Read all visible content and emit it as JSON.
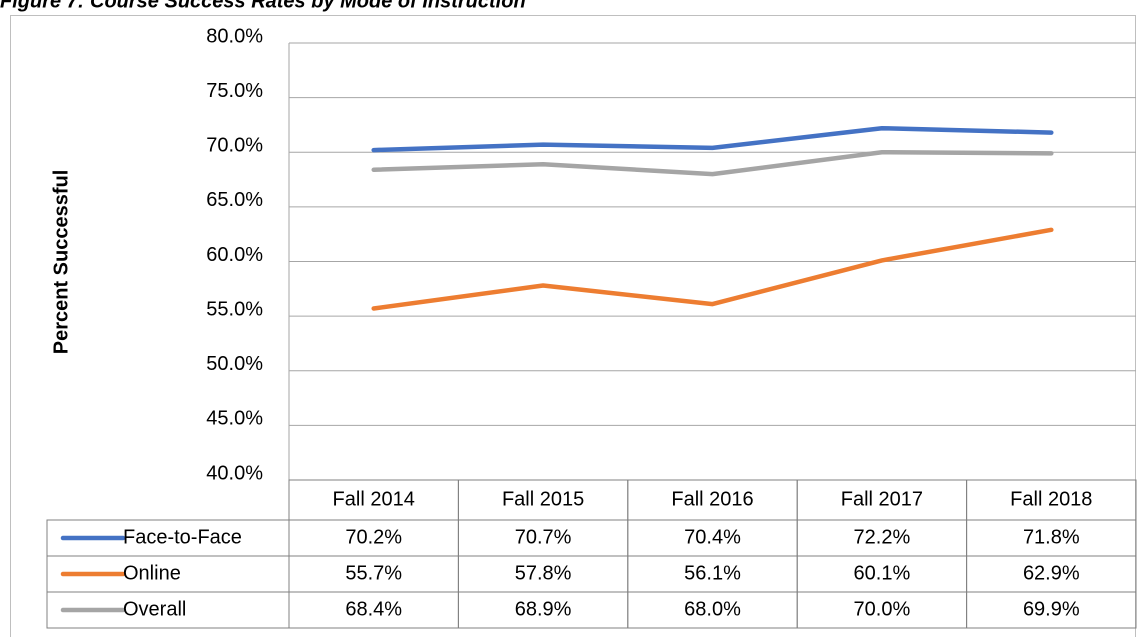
{
  "chart_data": {
    "type": "line",
    "title": "Figure 7: Course Success Rates by Mode of Instruction",
    "y_label": "Percent Successful",
    "categories": [
      "Fall 2014",
      "Fall 2015",
      "Fall 2016",
      "Fall 2017",
      "Fall 2018"
    ],
    "series": [
      {
        "name": "Face-to-Face",
        "color": "#4472c4",
        "values": [
          70.2,
          70.7,
          70.4,
          72.2,
          71.8
        ],
        "value_labels": [
          "70.2%",
          "70.7%",
          "70.4%",
          "72.2%",
          "71.8%"
        ]
      },
      {
        "name": "Online",
        "color": "#ed7d31",
        "values": [
          55.7,
          57.8,
          56.1,
          60.1,
          62.9
        ],
        "value_labels": [
          "55.7%",
          "57.8%",
          "56.1%",
          "60.1%",
          "62.9%"
        ]
      },
      {
        "name": "Overall",
        "color": "#a5a5a5",
        "values": [
          68.4,
          68.9,
          68.0,
          70.0,
          69.9
        ],
        "value_labels": [
          "68.4%",
          "68.9%",
          "68.0%",
          "70.0%",
          "69.9%"
        ]
      }
    ],
    "ylim": [
      40,
      80
    ],
    "yticks": [
      {
        "value": 40,
        "label": "40.0%"
      },
      {
        "value": 45,
        "label": "45.0%"
      },
      {
        "value": 50,
        "label": "50.0%"
      },
      {
        "value": 55,
        "label": "55.0%"
      },
      {
        "value": 60,
        "label": "60.0%"
      },
      {
        "value": 65,
        "label": "65.0%"
      },
      {
        "value": 70,
        "label": "70.0%"
      },
      {
        "value": 75,
        "label": "75.0%"
      },
      {
        "value": 80,
        "label": "80.0%"
      }
    ],
    "grid": true,
    "data_table": true
  }
}
